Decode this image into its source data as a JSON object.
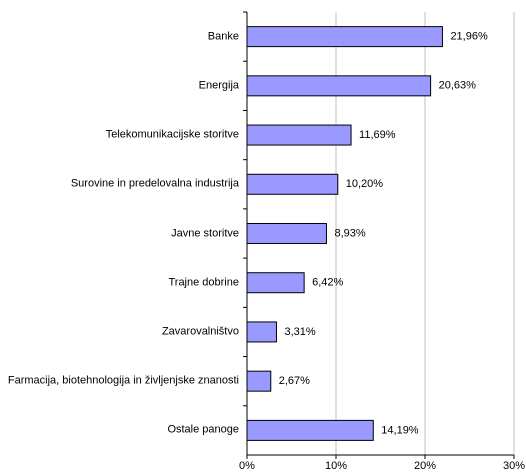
{
  "chart_data": {
    "type": "bar",
    "orientation": "horizontal",
    "categories": [
      "Banke",
      "Energija",
      "Telekomunikacijske storitve",
      "Surovine in predelovalna industrija",
      "Javne storitve",
      "Trajne dobrine",
      "Zavarovalništvo",
      "Farmacija, biotehnologija in življenjske znanosti",
      "Ostale panoge"
    ],
    "values": [
      21.96,
      20.63,
      11.69,
      10.2,
      8.93,
      6.42,
      3.31,
      2.67,
      14.19
    ],
    "value_labels": [
      "21,96%",
      "20,63%",
      "11,69%",
      "10,20%",
      "8,93%",
      "6,42%",
      "3,31%",
      "2,67%",
      "14,19%"
    ],
    "color": "#9999ff",
    "xlim": [
      0,
      30
    ],
    "xticks": [
      {
        "value": 0,
        "label": "0%"
      },
      {
        "value": 10,
        "label": "10%"
      },
      {
        "value": 20,
        "label": "20%"
      },
      {
        "value": 30,
        "label": "30%"
      }
    ],
    "grid": true
  }
}
